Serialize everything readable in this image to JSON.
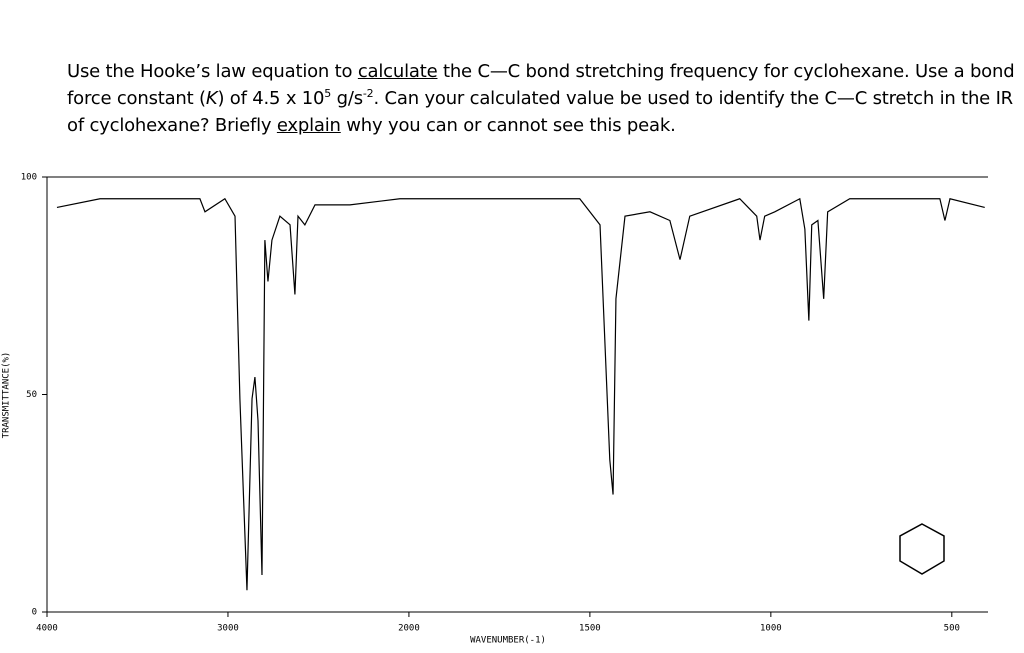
{
  "question": {
    "parts": [
      "Use the Hooke’s law equation to ",
      "calculate",
      " the C—C bond stretching frequency for cyclohexane. Use a bond force constant (",
      "K",
      ") of 4.5 x 10",
      "5",
      " g/s",
      "-2",
      ". Can your calculated value be used to identify the C—C stretch in the IR of cyclohexane? Briefly ",
      "explain",
      " why you can or cannot see this peak."
    ]
  },
  "chart_data": {
    "type": "line",
    "xlabel": "WAVENUMBER(-1)",
    "ylabel": "TRANSMITTANCE(%)",
    "xlim": [
      4000,
      400
    ],
    "x_break": 2000,
    "ylim": [
      0,
      100
    ],
    "xticks": [
      4000,
      3000,
      2000,
      1500,
      1000,
      500
    ],
    "yticks": [
      0,
      50,
      100
    ],
    "series": [
      {
        "name": "cyclohexane",
        "color": "#000000",
        "x": [
          3945,
          3707,
          3431,
          3155,
          3127,
          3017,
          2961,
          2934,
          2895,
          2867,
          2851,
          2834,
          2812,
          2796,
          2779,
          2757,
          2713,
          2657,
          2630,
          2613,
          2575,
          2519,
          2326,
          2050,
          1942,
          1749,
          1528,
          1472,
          1445,
          1436,
          1428,
          1403,
          1334,
          1279,
          1251,
          1224,
          1086,
          1039,
          1030,
          1017,
          989,
          920,
          906,
          895,
          887,
          870,
          854,
          843,
          782,
          644,
          533,
          519,
          505,
          409
        ],
        "values": [
          93,
          95,
          95,
          95,
          92,
          95,
          91,
          49,
          5,
          49,
          54,
          44,
          8.5,
          85.5,
          76,
          85.5,
          91,
          89,
          73,
          91,
          89,
          93.6,
          93.6,
          95,
          95,
          95,
          95,
          89,
          35,
          27,
          72,
          91,
          92,
          90,
          81,
          91,
          95,
          91,
          85.5,
          91,
          92,
          95,
          88,
          67,
          89,
          90,
          72,
          92,
          95,
          95,
          95,
          90,
          95,
          93
        ]
      }
    ]
  }
}
